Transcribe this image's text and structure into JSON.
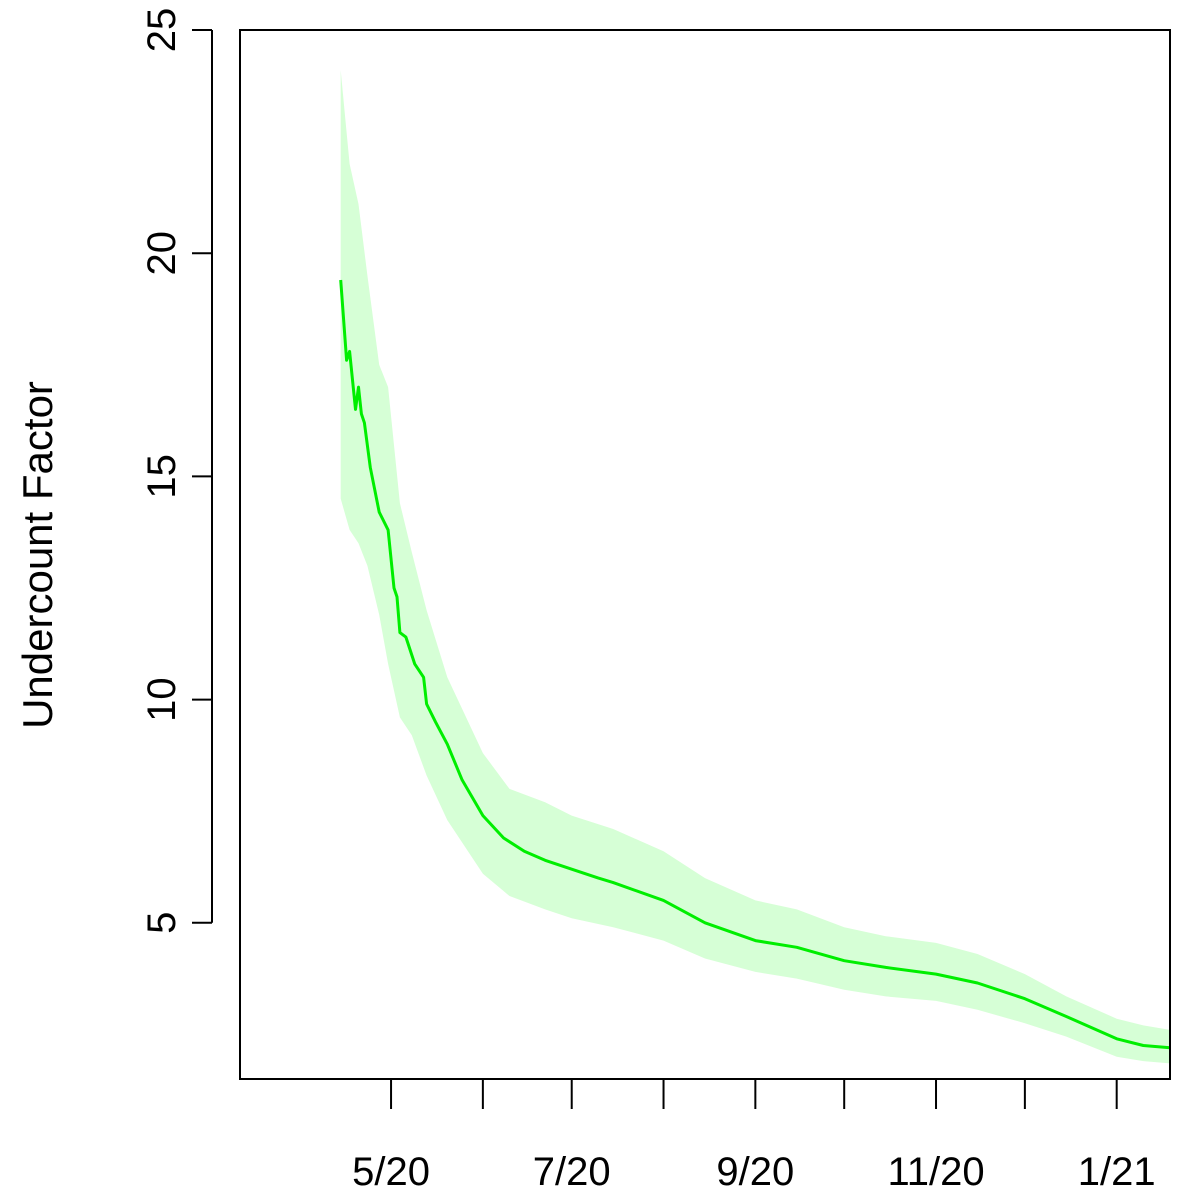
{
  "chart_data": {
    "type": "area",
    "title": "",
    "xlabel": "",
    "ylabel": "Undercount Factor",
    "xlim": [
      "2020-03-11",
      "2021-01-19"
    ],
    "ylim": [
      1.5,
      25
    ],
    "y_ticks": [
      5,
      10,
      15,
      20,
      25
    ],
    "x_ticks": [
      {
        "date": "2020-05-01",
        "label": "5/20"
      },
      {
        "date": "2020-06-01",
        "label": ""
      },
      {
        "date": "2020-07-01",
        "label": "7/20"
      },
      {
        "date": "2020-08-01",
        "label": ""
      },
      {
        "date": "2020-09-01",
        "label": "9/20"
      },
      {
        "date": "2020-10-01",
        "label": ""
      },
      {
        "date": "2020-11-01",
        "label": "11/20"
      },
      {
        "date": "2020-12-01",
        "label": ""
      },
      {
        "date": "2021-01-01",
        "label": "1/21"
      }
    ],
    "grid": false,
    "legend": "none",
    "colors": {
      "line": "#00ee00",
      "band": "#d6ffd6"
    },
    "series": [
      {
        "kind": "line",
        "points": [
          {
            "x": "2020-04-14",
            "y": 19.4
          },
          {
            "x": "2020-04-16",
            "y": 17.6
          },
          {
            "x": "2020-04-17",
            "y": 17.8
          },
          {
            "x": "2020-04-19",
            "y": 16.5
          },
          {
            "x": "2020-04-20",
            "y": 17.0
          },
          {
            "x": "2020-04-21",
            "y": 16.4
          },
          {
            "x": "2020-04-22",
            "y": 16.2
          },
          {
            "x": "2020-04-24",
            "y": 15.2
          },
          {
            "x": "2020-04-27",
            "y": 14.2
          },
          {
            "x": "2020-04-30",
            "y": 13.8
          },
          {
            "x": "2020-05-02",
            "y": 12.5
          },
          {
            "x": "2020-05-03",
            "y": 12.3
          },
          {
            "x": "2020-05-04",
            "y": 11.5
          },
          {
            "x": "2020-05-06",
            "y": 11.4
          },
          {
            "x": "2020-05-09",
            "y": 10.8
          },
          {
            "x": "2020-05-12",
            "y": 10.5
          },
          {
            "x": "2020-05-13",
            "y": 9.9
          },
          {
            "x": "2020-05-16",
            "y": 9.5
          },
          {
            "x": "2020-05-20",
            "y": 9.0
          },
          {
            "x": "2020-05-25",
            "y": 8.2
          },
          {
            "x": "2020-06-01",
            "y": 7.4
          },
          {
            "x": "2020-06-08",
            "y": 6.9
          },
          {
            "x": "2020-06-15",
            "y": 6.6
          },
          {
            "x": "2020-06-22",
            "y": 6.4
          },
          {
            "x": "2020-07-01",
            "y": 6.2
          },
          {
            "x": "2020-07-10",
            "y": 6.0
          },
          {
            "x": "2020-07-15",
            "y": 5.9
          },
          {
            "x": "2020-08-01",
            "y": 5.5
          },
          {
            "x": "2020-08-15",
            "y": 5.0
          },
          {
            "x": "2020-09-01",
            "y": 4.6
          },
          {
            "x": "2020-09-15",
            "y": 4.45
          },
          {
            "x": "2020-10-01",
            "y": 4.15
          },
          {
            "x": "2020-10-15",
            "y": 4.0
          },
          {
            "x": "2020-11-01",
            "y": 3.85
          },
          {
            "x": "2020-11-15",
            "y": 3.65
          },
          {
            "x": "2020-12-01",
            "y": 3.3
          },
          {
            "x": "2020-12-15",
            "y": 2.9
          },
          {
            "x": "2021-01-01",
            "y": 2.4
          },
          {
            "x": "2021-01-10",
            "y": 2.25
          },
          {
            "x": "2021-01-19",
            "y": 2.2
          }
        ]
      },
      {
        "kind": "band",
        "points": [
          {
            "x": "2020-04-14",
            "lo": 14.5,
            "hi": 24.1
          },
          {
            "x": "2020-04-17",
            "lo": 13.8,
            "hi": 22.0
          },
          {
            "x": "2020-04-20",
            "lo": 13.5,
            "hi": 21.1
          },
          {
            "x": "2020-04-23",
            "lo": 13.0,
            "hi": 19.5
          },
          {
            "x": "2020-04-27",
            "lo": 11.9,
            "hi": 17.5
          },
          {
            "x": "2020-04-30",
            "lo": 10.8,
            "hi": 17.0
          },
          {
            "x": "2020-05-04",
            "lo": 9.6,
            "hi": 14.4
          },
          {
            "x": "2020-05-08",
            "lo": 9.2,
            "hi": 13.3
          },
          {
            "x": "2020-05-13",
            "lo": 8.3,
            "hi": 12.0
          },
          {
            "x": "2020-05-20",
            "lo": 7.3,
            "hi": 10.5
          },
          {
            "x": "2020-06-01",
            "lo": 6.1,
            "hi": 8.8
          },
          {
            "x": "2020-06-10",
            "lo": 5.6,
            "hi": 8.0
          },
          {
            "x": "2020-06-22",
            "lo": 5.3,
            "hi": 7.7
          },
          {
            "x": "2020-07-01",
            "lo": 5.1,
            "hi": 7.4
          },
          {
            "x": "2020-07-15",
            "lo": 4.9,
            "hi": 7.1
          },
          {
            "x": "2020-08-01",
            "lo": 4.6,
            "hi": 6.6
          },
          {
            "x": "2020-08-15",
            "lo": 4.2,
            "hi": 6.0
          },
          {
            "x": "2020-09-01",
            "lo": 3.9,
            "hi": 5.5
          },
          {
            "x": "2020-09-15",
            "lo": 3.75,
            "hi": 5.3
          },
          {
            "x": "2020-10-01",
            "lo": 3.5,
            "hi": 4.9
          },
          {
            "x": "2020-10-15",
            "lo": 3.35,
            "hi": 4.7
          },
          {
            "x": "2020-11-01",
            "lo": 3.25,
            "hi": 4.55
          },
          {
            "x": "2020-11-15",
            "lo": 3.05,
            "hi": 4.3
          },
          {
            "x": "2020-12-01",
            "lo": 2.75,
            "hi": 3.85
          },
          {
            "x": "2020-12-15",
            "lo": 2.45,
            "hi": 3.35
          },
          {
            "x": "2021-01-01",
            "lo": 2.0,
            "hi": 2.85
          },
          {
            "x": "2021-01-10",
            "lo": 1.9,
            "hi": 2.7
          },
          {
            "x": "2021-01-19",
            "lo": 1.85,
            "hi": 2.6
          }
        ]
      }
    ]
  }
}
